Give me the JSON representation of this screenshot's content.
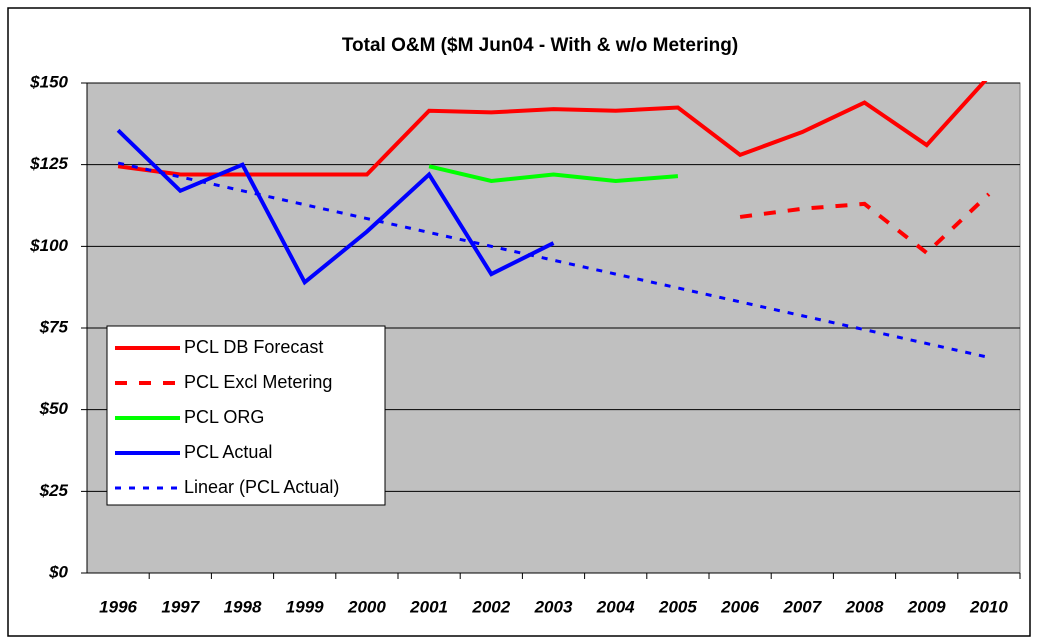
{
  "chart_data": {
    "type": "line",
    "title": "Total O&M ($M Jun04 - With & w/o Metering)",
    "categories": [
      "1996",
      "1997",
      "1998",
      "1999",
      "2000",
      "2001",
      "2002",
      "2003",
      "2004",
      "2005",
      "2006",
      "2007",
      "2008",
      "2009",
      "2010"
    ],
    "series": [
      {
        "name": "PCL DB Forecast",
        "color": "#ff0000",
        "dash": "solid",
        "values": [
          124.5,
          122,
          122,
          122,
          122,
          141.5,
          141,
          142,
          141.5,
          142.5,
          128,
          135,
          144,
          131,
          152
        ]
      },
      {
        "name": "PCL Excl Metering",
        "color": "#ff0000",
        "dash": "dashed",
        "values": [
          null,
          null,
          null,
          null,
          null,
          null,
          null,
          null,
          null,
          null,
          109,
          111.5,
          113,
          98,
          116
        ]
      },
      {
        "name": "PCL ORG",
        "color": "#00ff00",
        "dash": "solid",
        "values": [
          null,
          null,
          null,
          null,
          null,
          124.5,
          120,
          122,
          120,
          121.5,
          null,
          null,
          null,
          null,
          null
        ]
      },
      {
        "name": "PCL Actual",
        "color": "#0000ff",
        "dash": "solid",
        "values": [
          135.5,
          117,
          125,
          89,
          104.5,
          122,
          91.5,
          101,
          null,
          null,
          null,
          null,
          null,
          null,
          null
        ]
      },
      {
        "name": "Linear (PCL Actual)",
        "color": "#0000ff",
        "dash": "dotted",
        "values": [
          125.5,
          121.25,
          117,
          112.75,
          108.5,
          104.25,
          100,
          95.75,
          91.5,
          87.25,
          83,
          78.75,
          74.5,
          70.25,
          66
        ]
      }
    ],
    "ylim": [
      0,
      150
    ],
    "yticks": [
      {
        "value": 0,
        "label": "$0"
      },
      {
        "value": 25,
        "label": "$25"
      },
      {
        "value": 50,
        "label": "$50"
      },
      {
        "value": 75,
        "label": "$75"
      },
      {
        "value": 100,
        "label": "$100"
      },
      {
        "value": 125,
        "label": "$125"
      },
      {
        "value": 150,
        "label": "$150"
      }
    ],
    "grid": true,
    "background": "#c0c0c0",
    "legend": "bottom-left"
  }
}
